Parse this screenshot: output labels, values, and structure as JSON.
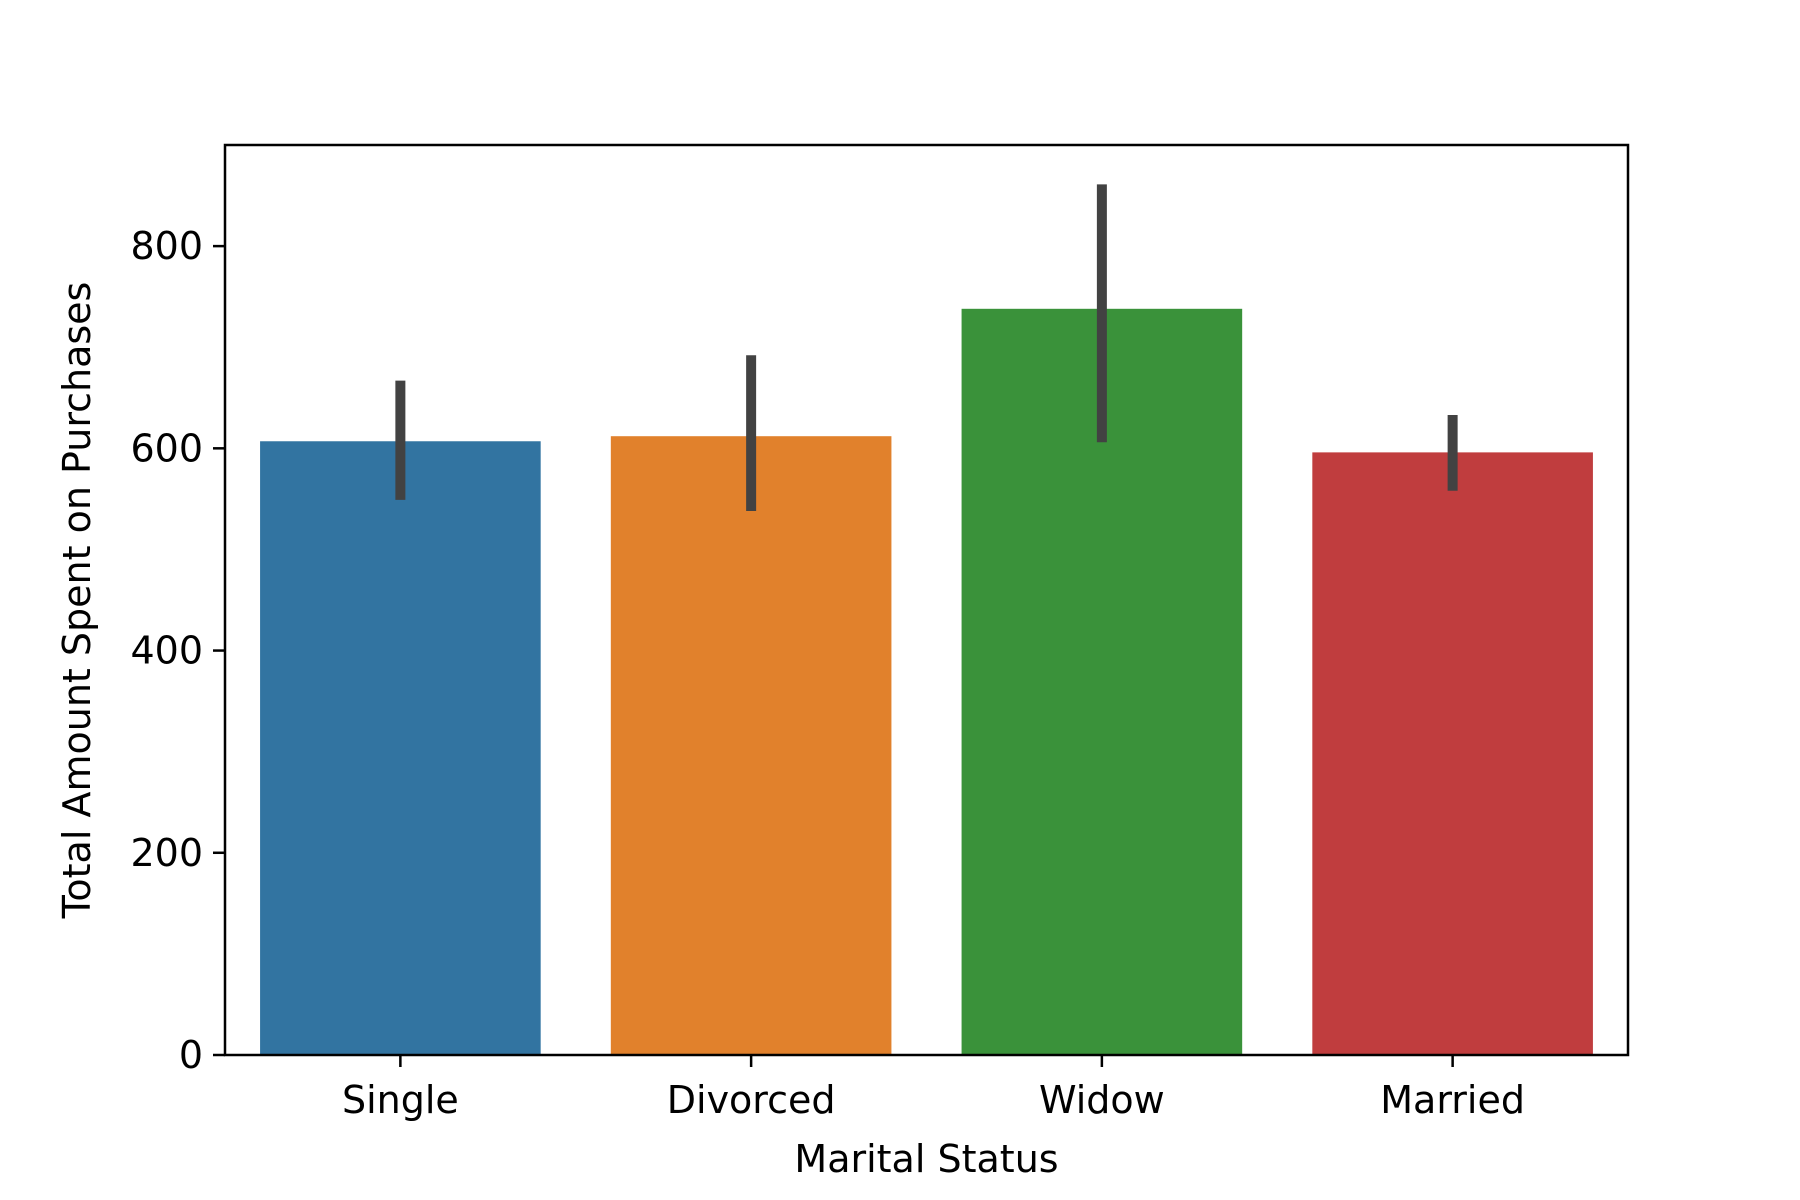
{
  "chart_data": {
    "type": "bar",
    "title": "",
    "xlabel": "Marital Status",
    "ylabel": "Total Amount Spent on Purchases",
    "categories": [
      "Single",
      "Divorced",
      "Widow",
      "Married"
    ],
    "values": [
      607,
      612,
      738,
      596
    ],
    "error_bars": [
      [
        549,
        667
      ],
      [
        538,
        692
      ],
      [
        606,
        861
      ],
      [
        558,
        633
      ]
    ],
    "colors": [
      "#3274a1",
      "#e1812c",
      "#3a923a",
      "#c03d3e"
    ],
    "error_bar_color": "#424242",
    "ylim": [
      0,
      900
    ],
    "yticks": [
      0,
      200,
      400,
      600,
      800
    ],
    "grid": false,
    "legend": "none"
  }
}
